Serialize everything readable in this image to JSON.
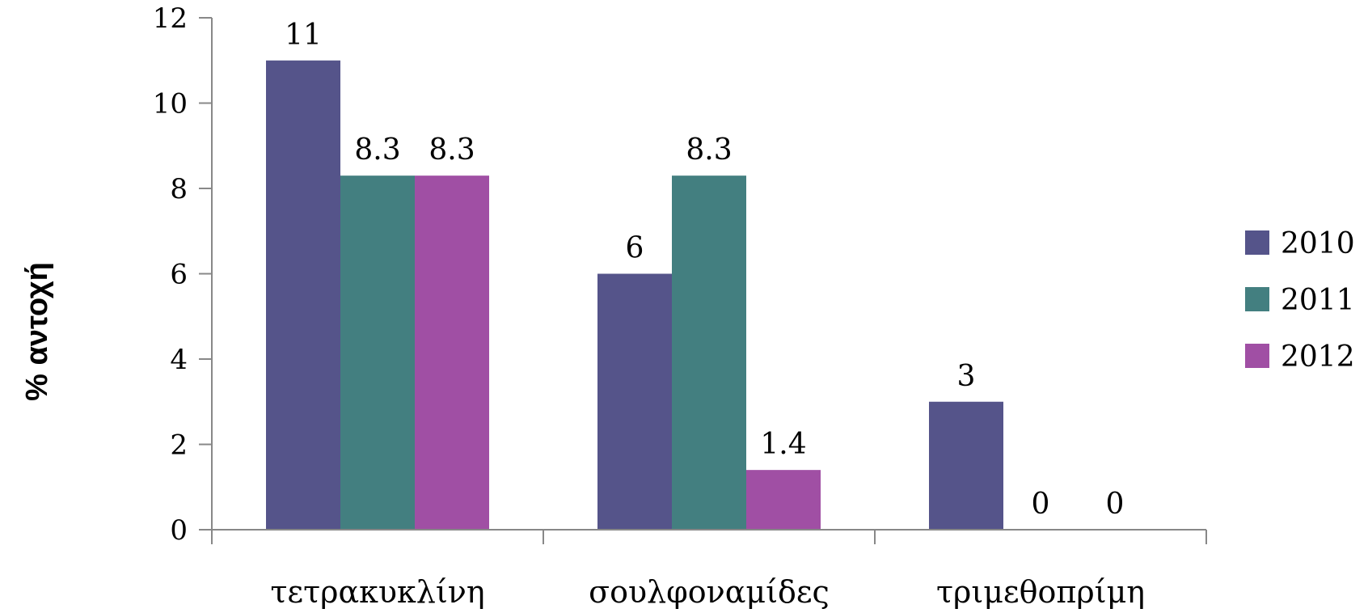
{
  "chart_data": {
    "type": "bar",
    "title": "",
    "xlabel": "",
    "ylabel": "% αντοχή",
    "ylim": [
      0,
      12
    ],
    "yticks": [
      0,
      2,
      4,
      6,
      8,
      10,
      12
    ],
    "categories": [
      "τετρακυκλίνη",
      "σουλφοναμίδες",
      "τριμεθοπρίμη"
    ],
    "series": [
      {
        "name": "2010",
        "color": "#55548A",
        "values": [
          11,
          6,
          3
        ],
        "labels": [
          "11",
          "6",
          "3"
        ]
      },
      {
        "name": "2011",
        "color": "#437F80",
        "values": [
          8.3,
          8.3,
          0
        ],
        "labels": [
          "8.3",
          "8.3",
          "0"
        ]
      },
      {
        "name": "2012",
        "color": "#A04FA4",
        "values": [
          8.3,
          1.4,
          0
        ],
        "labels": [
          "8.3",
          "1.4",
          "0"
        ]
      }
    ],
    "legend_position": "right",
    "grid": false
  }
}
